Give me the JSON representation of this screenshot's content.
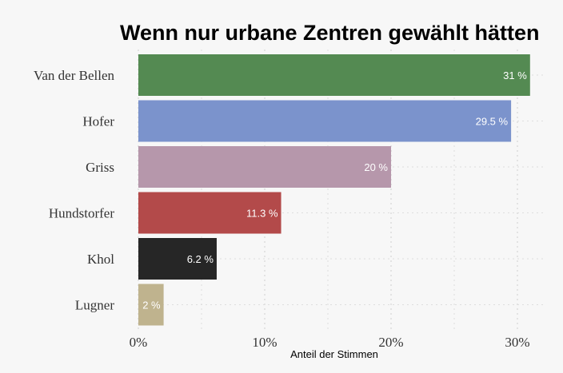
{
  "chart_data": {
    "type": "bar",
    "orientation": "horizontal",
    "title": "Wenn nur urbane Zentren gewählt hätten",
    "xlabel": "Anteil der Stimmen",
    "ylabel": "",
    "categories": [
      "Van der Bellen",
      "Hofer",
      "Griss",
      "Hundstorfer",
      "Khol",
      "Lugner"
    ],
    "values": [
      31,
      29.5,
      20,
      11.3,
      6.2,
      2
    ],
    "value_labels": [
      "31 %",
      "29.5 %",
      "20 %",
      "11.3 %",
      "6.2 %",
      "2 %"
    ],
    "colors": [
      "#548a52",
      "#7b93cc",
      "#b697ab",
      "#b34a4a",
      "#262626",
      "#bfb38e"
    ],
    "xlim": [
      0,
      31.5
    ],
    "xticks": [
      0,
      10,
      20,
      30
    ],
    "xtick_labels": [
      "0%",
      "10%",
      "20%",
      "30%"
    ],
    "grid": true,
    "legend": "none"
  }
}
